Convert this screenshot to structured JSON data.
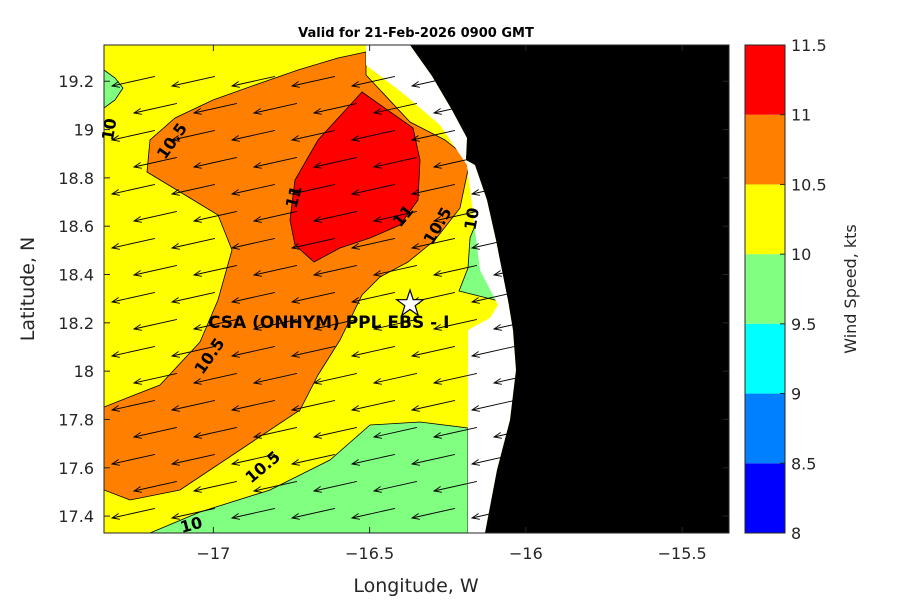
{
  "chart_data": {
    "type": "heatmap",
    "title": "Valid for 21-Feb-2026 0900 GMT",
    "xlabel": "Longitude, W",
    "ylabel": "Latitude, N",
    "xlim": [
      -17.35,
      -15.35
    ],
    "ylim": [
      17.33,
      19.35
    ],
    "xticks": [
      -17,
      -16.5,
      -16,
      -15.5
    ],
    "yticks": [
      17.4,
      17.6,
      17.8,
      18,
      18.2,
      18.4,
      18.6,
      18.8,
      19,
      19.2
    ],
    "colorbar": {
      "label": "Wind Speed, kts",
      "levels": [
        8,
        8.5,
        9,
        9.5,
        10,
        10.5,
        11,
        11.5
      ],
      "colors": [
        "#0000ff",
        "#0080ff",
        "#00ffff",
        "#80ff80",
        "#ffff00",
        "#ff8000",
        "#ff0000"
      ]
    },
    "land_color": "#000000",
    "contour_labels": [
      {
        "text": "10",
        "lon": -17.33,
        "lat": 19.0
      },
      {
        "text": "10.5",
        "lon": -17.13,
        "lat": 18.95
      },
      {
        "text": "11",
        "lon": -16.74,
        "lat": 18.72
      },
      {
        "text": "11",
        "lon": -16.39,
        "lat": 18.64
      },
      {
        "text": "10.5",
        "lon": -16.28,
        "lat": 18.6
      },
      {
        "text": "10",
        "lon": -16.17,
        "lat": 18.63
      },
      {
        "text": "10.5",
        "lon": -17.01,
        "lat": 18.06
      },
      {
        "text": "10.5",
        "lon": -16.84,
        "lat": 17.6
      },
      {
        "text": "10",
        "lon": -17.07,
        "lat": 17.36
      }
    ],
    "site": {
      "label": "CSA (ONHYM) PPL EBS  - I",
      "lon": -16.35,
      "lat": 18.28
    },
    "wind_direction_from": "ENE"
  }
}
